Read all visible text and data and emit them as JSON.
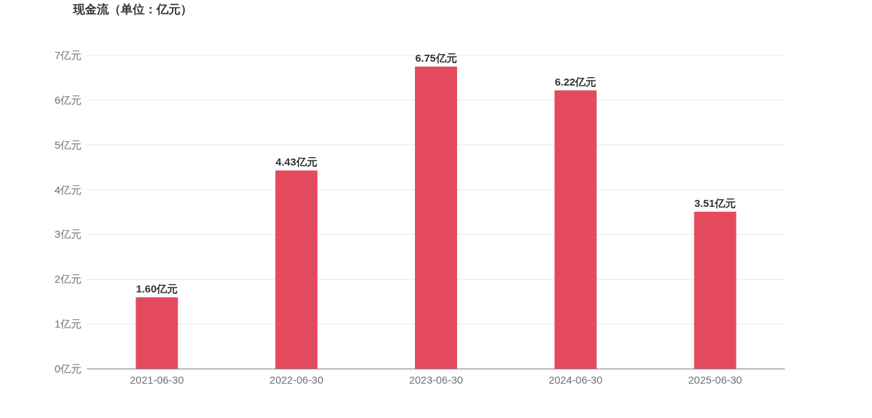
{
  "chart_data": {
    "type": "bar",
    "title": "现金流（单位：亿元）",
    "categories": [
      "2021-06-30",
      "2022-06-30",
      "2023-06-30",
      "2024-06-30",
      "2025-06-30"
    ],
    "values": [
      1.6,
      4.43,
      6.75,
      6.22,
      3.51
    ],
    "value_labels": [
      "1.60亿元",
      "4.43亿元",
      "6.75亿元",
      "6.22亿元",
      "3.51亿元"
    ],
    "color": "#e54b5f",
    "ylim": [
      0,
      7
    ],
    "yticks": [
      {
        "value": 0,
        "label": "0亿元"
      },
      {
        "value": 1,
        "label": "1亿元"
      },
      {
        "value": 2,
        "label": "2亿元"
      },
      {
        "value": 3,
        "label": "3亿元"
      },
      {
        "value": 4,
        "label": "4亿元"
      },
      {
        "value": 5,
        "label": "5亿元"
      },
      {
        "value": 6,
        "label": "6亿元"
      },
      {
        "value": 7,
        "label": "7亿元"
      }
    ],
    "grid": "y"
  }
}
